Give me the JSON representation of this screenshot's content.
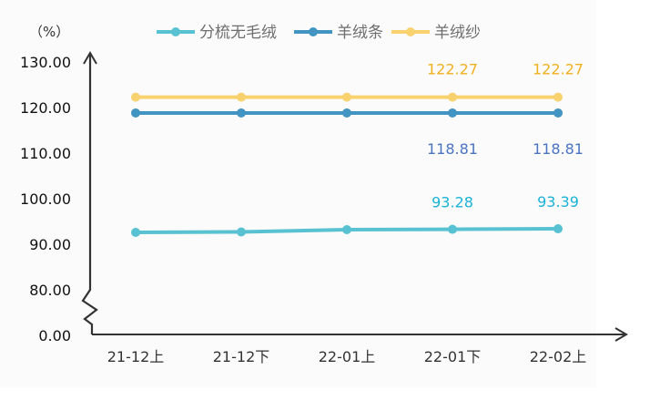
{
  "chart_data": {
    "type": "line",
    "unit_label": "（%）",
    "categories": [
      "21-12上",
      "21-12下",
      "22-01上",
      "22-01下",
      "22-02上"
    ],
    "y_ticks": [
      "0.00",
      "80.00",
      "90.00",
      "100.00",
      "110.00",
      "120.00",
      "130.00"
    ],
    "y_axis_break": [
      0,
      80
    ],
    "ylim": [
      80,
      130
    ],
    "grid": false,
    "legend_position": "top",
    "series": [
      {
        "name": "分梳无毛绒",
        "color": "#58c2d2",
        "values": [
          92.6,
          92.7,
          93.2,
          93.28,
          93.39
        ],
        "data_labels": [
          null,
          null,
          null,
          "93.28",
          "93.39"
        ],
        "label_color": "#1ab2d8"
      },
      {
        "name": "羊绒条",
        "color": "#4295c2",
        "values": [
          118.81,
          118.81,
          118.81,
          118.81,
          118.81
        ],
        "data_labels": [
          null,
          null,
          null,
          "118.81",
          "118.81"
        ],
        "label_color": "#4a74c0"
      },
      {
        "name": "羊绒纱",
        "color": "#f9d270",
        "values": [
          122.27,
          122.27,
          122.27,
          122.27,
          122.27
        ],
        "data_labels": [
          null,
          null,
          null,
          "122.27",
          "122.27"
        ],
        "label_color": "#f0b020"
      }
    ]
  }
}
